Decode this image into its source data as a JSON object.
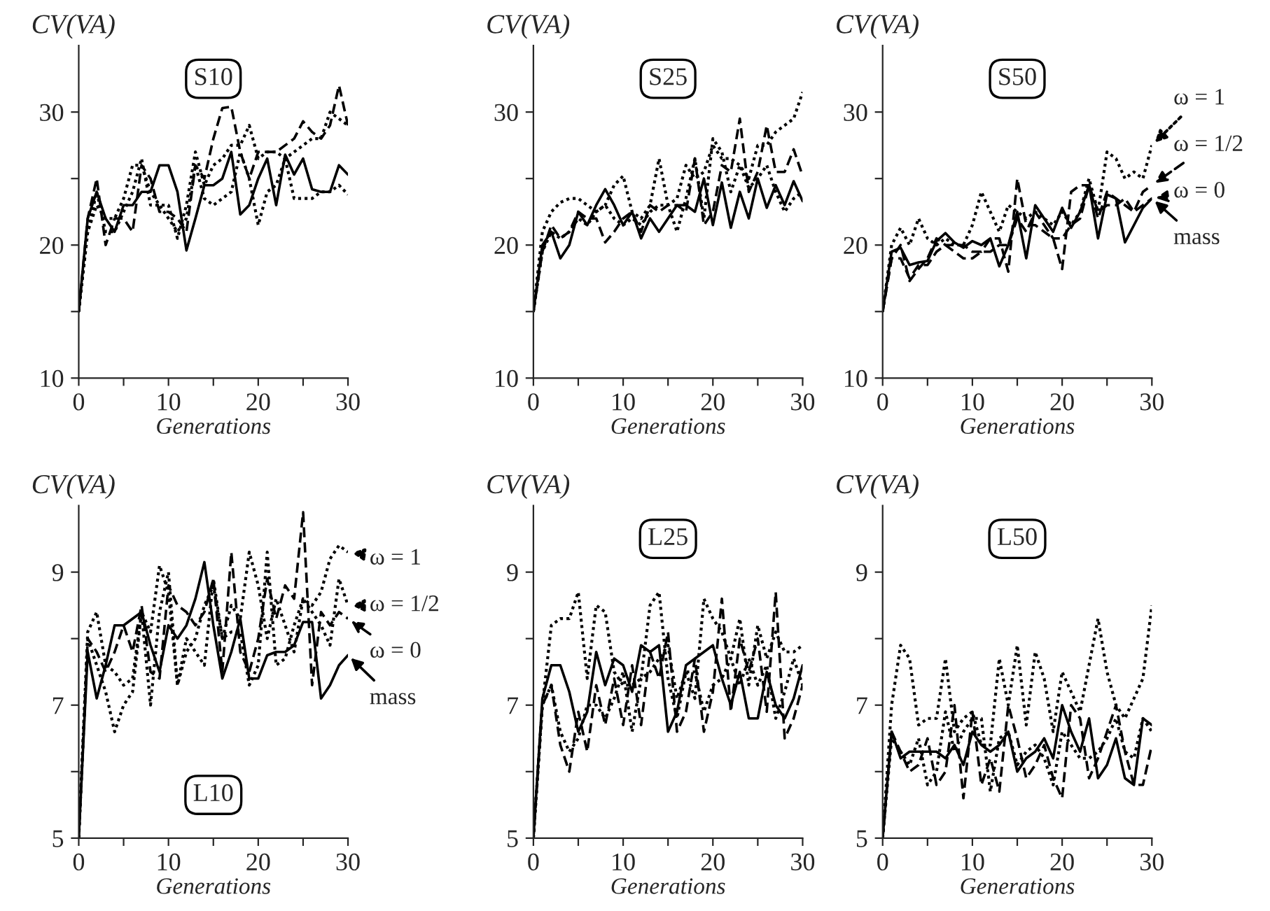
{
  "chart_data": [
    {
      "type": "line",
      "title": "S10",
      "xlabel": "Generations",
      "ylabel": "CV(VA)",
      "x": [
        0,
        1,
        2,
        3,
        4,
        5,
        6,
        7,
        8,
        9,
        10,
        11,
        12,
        13,
        14,
        15,
        16,
        17,
        18,
        19,
        20,
        21,
        22,
        23,
        24,
        25,
        26,
        27,
        28,
        29,
        30
      ],
      "xlim": [
        0,
        30
      ],
      "xticks": [
        0,
        {
          "value": 5,
          "label": null
        },
        10,
        {
          "value": 15,
          "label": null
        },
        20,
        {
          "value": 25,
          "label": null
        },
        30
      ],
      "ylim": [
        10,
        35
      ],
      "yticks": [
        10,
        {
          "value": 15,
          "label": null
        },
        20,
        {
          "value": 25,
          "label": null
        },
        30
      ],
      "legend": false,
      "series": [
        {
          "color": "#000000",
          "line_style": "solid",
          "values": [
            15,
            22,
            24,
            22,
            21,
            23,
            23,
            24,
            24,
            26,
            26,
            24,
            19.6,
            22,
            24.5,
            24.5,
            25,
            27,
            22.3,
            23,
            25,
            26.5,
            23,
            26.8,
            25.3,
            26.5,
            24.2,
            24,
            24,
            26,
            25.3
          ]
        },
        {
          "color": "#000000",
          "line_style": "dashed",
          "values": [
            15,
            22,
            25,
            20,
            22,
            22,
            21,
            26,
            25,
            22.5,
            22.5,
            22,
            21,
            26,
            25,
            28,
            30.3,
            30.4,
            27,
            25,
            27,
            27,
            27,
            27.5,
            28,
            29.3,
            28.5,
            28,
            29,
            32,
            29
          ]
        },
        {
          "color": "#000000",
          "line_style": "dotted",
          "values": [
            15,
            21,
            23,
            22,
            22,
            23.5,
            26,
            26,
            24,
            23,
            22,
            21,
            22,
            26,
            23.5,
            23,
            23.5,
            24,
            27,
            25,
            21.5,
            24,
            24.5,
            26.5,
            23.5,
            23.5,
            23.5,
            24,
            24,
            24.5,
            23.8
          ]
        },
        {
          "color": "#000000",
          "line_style": "dotted",
          "values": [
            15,
            21,
            24,
            21,
            21,
            22.5,
            24,
            26.5,
            23,
            23,
            23,
            20.5,
            23,
            27,
            24.5,
            26,
            26.5,
            27.5,
            27.5,
            29,
            26.5,
            27,
            27,
            26.5,
            27,
            27.5,
            28,
            28,
            30,
            29.5,
            29
          ]
        }
      ]
    },
    {
      "type": "line",
      "title": "S25",
      "xlabel": "Generations",
      "ylabel": "CV(VA)",
      "x": [
        0,
        1,
        2,
        3,
        4,
        5,
        6,
        7,
        8,
        9,
        10,
        11,
        12,
        13,
        14,
        15,
        16,
        17,
        18,
        19,
        20,
        21,
        22,
        23,
        24,
        25,
        26,
        27,
        28,
        29,
        30
      ],
      "xlim": [
        0,
        30
      ],
      "xticks": [
        0,
        {
          "value": 5,
          "label": null
        },
        10,
        {
          "value": 15,
          "label": null
        },
        20,
        {
          "value": 25,
          "label": null
        },
        30
      ],
      "ylim": [
        10,
        35
      ],
      "yticks": [
        10,
        {
          "value": 15,
          "label": null
        },
        20,
        {
          "value": 25,
          "label": null
        },
        30
      ],
      "legend": false,
      "series": [
        {
          "color": "#000000",
          "line_style": "solid",
          "values": [
            15,
            20,
            21,
            19,
            20,
            22.5,
            21.5,
            23,
            24.2,
            23,
            21.5,
            22.5,
            20.5,
            22,
            21,
            22,
            23,
            23,
            22.5,
            25,
            21.5,
            24.7,
            21.3,
            24,
            22,
            25,
            22.8,
            24.5,
            23,
            24.8,
            23.3
          ]
        },
        {
          "color": "#000000",
          "line_style": "dashed",
          "values": [
            15,
            19.5,
            21.5,
            20.5,
            21,
            22.5,
            22,
            22,
            20.2,
            21,
            22,
            22.5,
            21,
            23,
            22.5,
            23,
            23,
            22.5,
            26.5,
            21.5,
            22.5,
            26,
            25.5,
            29.5,
            24,
            25.5,
            29,
            25.5,
            25.5,
            27.2,
            25.2
          ]
        },
        {
          "color": "#000000",
          "line_style": "dotted",
          "values": [
            15,
            21,
            22.5,
            23.2,
            23.5,
            23.5,
            23,
            22.5,
            23,
            24.5,
            25.2,
            22.5,
            22,
            23,
            26.5,
            23,
            21,
            23.5,
            26.5,
            22,
            28,
            27,
            24,
            26,
            24.3,
            25,
            26,
            24,
            22.5,
            23.5,
            24
          ]
        },
        {
          "color": "#000000",
          "line_style": "dotted",
          "values": [
            15,
            19.5,
            21,
            20.5,
            21,
            22,
            21.5,
            22.5,
            23,
            22,
            21.5,
            22,
            21.5,
            22.5,
            23,
            23,
            23.5,
            26,
            25,
            25.5,
            27.5,
            26.5,
            26.5,
            26,
            25,
            27.5,
            27.5,
            28.5,
            29,
            29.5,
            31.5
          ]
        }
      ]
    },
    {
      "type": "line",
      "title": "S50",
      "xlabel": "Generations",
      "ylabel": "CV(VA)",
      "x": [
        0,
        1,
        2,
        3,
        4,
        5,
        6,
        7,
        8,
        9,
        10,
        11,
        12,
        13,
        14,
        15,
        16,
        17,
        18,
        19,
        20,
        21,
        22,
        23,
        24,
        25,
        26,
        27,
        28,
        29,
        30
      ],
      "xlim": [
        0,
        30
      ],
      "xticks": [
        0,
        {
          "value": 5,
          "label": null
        },
        10,
        {
          "value": 15,
          "label": null
        },
        20,
        {
          "value": 25,
          "label": null
        },
        30
      ],
      "ylim": [
        10,
        35
      ],
      "yticks": [
        10,
        {
          "value": 15,
          "label": null
        },
        20,
        {
          "value": 25,
          "label": null
        },
        30
      ],
      "legend": "right",
      "series": [
        {
          "name": "mass",
          "color": "#000000",
          "line_style": "solid",
          "values": [
            15,
            19.5,
            19.8,
            18.5,
            18.7,
            18.8,
            20.3,
            20.9,
            20.2,
            19.8,
            20.3,
            20,
            20.5,
            18.4,
            20,
            22.5,
            19,
            23,
            22,
            21,
            22.8,
            21.3,
            22.5,
            24.5,
            20.5,
            23.8,
            23.5,
            20.2,
            21.5,
            22.8,
            23.5
          ]
        },
        {
          "name": "ω = 0",
          "color": "#000000",
          "line_style": "dashed",
          "values": [
            15,
            19,
            19,
            17.5,
            18.5,
            18.5,
            19.5,
            20,
            19.5,
            19,
            19,
            19.5,
            19.5,
            20,
            20,
            22,
            21,
            22.5,
            21.5,
            20.5,
            20.5,
            21.5,
            22,
            24.5,
            22.5,
            23,
            23,
            23.5,
            22.5,
            23,
            23.5
          ]
        },
        {
          "name": "ω = 1/2",
          "color": "#000000",
          "line_style": "dashed",
          "values": [
            15,
            19,
            20,
            17.3,
            18.2,
            19,
            20.5,
            20,
            20,
            20,
            19.5,
            19.5,
            20.5,
            20.5,
            18,
            25,
            21.5,
            21.5,
            21,
            20.5,
            18.2,
            24,
            24.5,
            24.5,
            22,
            24,
            23.5,
            23,
            22.5,
            24,
            24.5
          ]
        },
        {
          "name": "ω = 1",
          "color": "#000000",
          "line_style": "dotted",
          "values": [
            15,
            20,
            21.3,
            20,
            22,
            20.5,
            20,
            20.5,
            20,
            20,
            21.5,
            24,
            22.5,
            21,
            23,
            22.5,
            22,
            22.5,
            22,
            21.5,
            22.5,
            21.5,
            22.5,
            25,
            22.5,
            27,
            26.5,
            25,
            25.5,
            25,
            27.5
          ]
        }
      ]
    },
    {
      "type": "line",
      "title": "L10",
      "xlabel": "Generations",
      "ylabel": "CV(VA)",
      "x": [
        0,
        1,
        2,
        3,
        4,
        5,
        6,
        7,
        8,
        9,
        10,
        11,
        12,
        13,
        14,
        15,
        16,
        17,
        18,
        19,
        20,
        21,
        22,
        23,
        24,
        25,
        26,
        27,
        28,
        29,
        30
      ],
      "xlim": [
        0,
        30
      ],
      "xticks": [
        0,
        {
          "value": 5,
          "label": null
        },
        10,
        {
          "value": 15,
          "label": null
        },
        20,
        {
          "value": 25,
          "label": null
        },
        30
      ],
      "ylim": [
        5,
        10
      ],
      "yticks": [
        5,
        {
          "value": 6,
          "label": null
        },
        7,
        {
          "value": 8,
          "label": null
        },
        9
      ],
      "legend": "right",
      "series": [
        {
          "name": "mass",
          "color": "#000000",
          "line_style": "solid",
          "values": [
            5,
            7.8,
            7.1,
            7.6,
            8.2,
            8.2,
            8.3,
            8.4,
            7.9,
            7.5,
            8.2,
            8,
            8.2,
            8.6,
            9.15,
            8.2,
            7.4,
            7.8,
            8.3,
            7.4,
            7.4,
            7.75,
            7.8,
            7.8,
            7.9,
            8.25,
            8.25,
            7.1,
            7.3,
            7.6,
            7.75
          ]
        },
        {
          "name": "ω = 0",
          "color": "#000000",
          "line_style": "dashed",
          "values": [
            5,
            8,
            7.8,
            7.5,
            7.8,
            8.2,
            7.8,
            8.5,
            7.5,
            7.4,
            8.8,
            8.5,
            8.4,
            8.2,
            8.4,
            8.9,
            7.5,
            9.3,
            7.8,
            7.5,
            8,
            8.9,
            8.3,
            8.8,
            8.6,
            9.9,
            7.3,
            8.4,
            8.2,
            8.4,
            8.3
          ]
        },
        {
          "name": "ω = 1/2",
          "color": "#000000",
          "line_style": "dotted",
          "values": [
            5,
            8.1,
            8.4,
            7.6,
            7.5,
            7.3,
            7.4,
            8.4,
            7,
            8.4,
            9,
            7.3,
            8,
            7.8,
            7.6,
            8.9,
            8,
            8.5,
            8.3,
            9.3,
            8.8,
            8,
            8.6,
            8.2,
            7.8,
            8.6,
            8.4,
            8.2,
            7.9,
            8.9,
            8.5
          ]
        },
        {
          "name": "ω = 1",
          "color": "#000000",
          "line_style": "dotted",
          "values": [
            5,
            8,
            7.6,
            7.2,
            6.6,
            7,
            7.2,
            8.4,
            8.1,
            9.1,
            8.7,
            7.3,
            7.8,
            8,
            8.5,
            8.8,
            8,
            8.1,
            8.1,
            7.3,
            7.6,
            9.3,
            7.6,
            7.7,
            8.2,
            8.6,
            8.5,
            8.7,
            9.2,
            9.4,
            9.3
          ]
        }
      ]
    },
    {
      "type": "line",
      "title": "L25",
      "xlabel": "Generations",
      "ylabel": "CV(VA)",
      "x": [
        0,
        1,
        2,
        3,
        4,
        5,
        6,
        7,
        8,
        9,
        10,
        11,
        12,
        13,
        14,
        15,
        16,
        17,
        18,
        19,
        20,
        21,
        22,
        23,
        24,
        25,
        26,
        27,
        28,
        29,
        30
      ],
      "xlim": [
        0,
        30
      ],
      "xticks": [
        0,
        {
          "value": 5,
          "label": null
        },
        10,
        {
          "value": 15,
          "label": null
        },
        20,
        {
          "value": 25,
          "label": null
        },
        30
      ],
      "ylim": [
        5,
        10
      ],
      "yticks": [
        5,
        {
          "value": 6,
          "label": null
        },
        7,
        {
          "value": 8,
          "label": null
        },
        9
      ],
      "legend": false,
      "series": [
        {
          "color": "#000000",
          "line_style": "solid",
          "values": [
            5,
            7.1,
            7.6,
            7.6,
            7.2,
            6.6,
            6.9,
            7.8,
            7.3,
            7.7,
            7.6,
            7.2,
            7.9,
            7.8,
            7.9,
            6.6,
            6.9,
            7.6,
            7.7,
            7.8,
            7.9,
            7.4,
            7,
            7.5,
            6.8,
            6.8,
            7.5,
            7,
            6.8,
            7.1,
            7.6
          ]
        },
        {
          "color": "#000000",
          "line_style": "dashed",
          "values": [
            5,
            7,
            7.3,
            6.4,
            6,
            6.9,
            6.3,
            7.3,
            6.7,
            7.4,
            6.7,
            7.6,
            6.7,
            7.8,
            7.4,
            8.1,
            6.6,
            6.9,
            7.7,
            6.6,
            7.2,
            8.6,
            6.9,
            8,
            7.5,
            8,
            6.9,
            8.7,
            6.5,
            6.8,
            7.3
          ]
        },
        {
          "color": "#000000",
          "line_style": "dotted",
          "values": [
            5,
            7,
            8.2,
            8.3,
            8.3,
            8.7,
            7.4,
            8.5,
            8.4,
            7.5,
            7.3,
            7.3,
            7.4,
            8.5,
            8.7,
            7.4,
            6.8,
            7.5,
            7.1,
            8.6,
            8.3,
            8.1,
            7.7,
            8.3,
            7.3,
            8.2,
            7.7,
            8.1,
            7.8,
            7.8,
            7.9
          ]
        },
        {
          "color": "#000000",
          "line_style": "dotted",
          "values": [
            5,
            7,
            7.3,
            6.6,
            6.3,
            6.5,
            7,
            7,
            6.8,
            7.1,
            7.5,
            6.6,
            7.4,
            7.5,
            7.7,
            7.9,
            7.1,
            7.5,
            7.5,
            6.9,
            7.3,
            7.4,
            7.7,
            7.3,
            7.7,
            7.3,
            7.6,
            6.8,
            7.2,
            7.7,
            7.3
          ]
        }
      ]
    },
    {
      "type": "line",
      "title": "L50",
      "xlabel": "Generations",
      "ylabel": "CV(VA)",
      "x": [
        0,
        1,
        2,
        3,
        4,
        5,
        6,
        7,
        8,
        9,
        10,
        11,
        12,
        13,
        14,
        15,
        16,
        17,
        18,
        19,
        20,
        21,
        22,
        23,
        24,
        25,
        26,
        27,
        28,
        29,
        30
      ],
      "xlim": [
        0,
        30
      ],
      "xticks": [
        0,
        {
          "value": 5,
          "label": null
        },
        10,
        {
          "value": 15,
          "label": null
        },
        20,
        {
          "value": 25,
          "label": null
        },
        30
      ],
      "ylim": [
        5,
        10
      ],
      "yticks": [
        5,
        {
          "value": 6,
          "label": null
        },
        7,
        {
          "value": 8,
          "label": null
        },
        9
      ],
      "legend": false,
      "series": [
        {
          "color": "#000000",
          "line_style": "solid",
          "values": [
            5,
            6.6,
            6.2,
            6.3,
            6.3,
            6.3,
            6.3,
            6.2,
            6.4,
            6.1,
            6.6,
            6.4,
            6.3,
            6.4,
            6.6,
            6,
            6.2,
            6.3,
            6.5,
            6.2,
            7,
            6.6,
            6.3,
            6.8,
            5.9,
            6.1,
            6.5,
            5.9,
            5.8,
            6.8,
            6.7
          ]
        },
        {
          "color": "#000000",
          "line_style": "dashed",
          "values": [
            5,
            6.6,
            6.3,
            6,
            6.1,
            6.5,
            5.8,
            6,
            7,
            5.6,
            6.9,
            5.8,
            6.2,
            5.7,
            7,
            6.5,
            5.9,
            6.1,
            6.4,
            5.9,
            5.6,
            7,
            6.8,
            5.9,
            6.2,
            6.6,
            7,
            6.3,
            5.8,
            5.8,
            6.4
          ]
        },
        {
          "color": "#000000",
          "line_style": "dotted",
          "values": [
            5,
            7,
            7.9,
            7.7,
            6.7,
            6.8,
            6.8,
            7.7,
            6.6,
            6.8,
            6.9,
            6.4,
            6.4,
            7.7,
            7,
            7.9,
            6.7,
            7.8,
            7.4,
            6.6,
            7.5,
            7.2,
            6.9,
            7.6,
            8.3,
            7.5,
            7,
            6.8,
            7.1,
            7.4,
            8.5
          ]
        },
        {
          "color": "#000000",
          "line_style": "dotted",
          "values": [
            5,
            6.5,
            6.3,
            6.1,
            6.5,
            5.8,
            6,
            6.9,
            6.3,
            6.6,
            6.8,
            6.8,
            5.7,
            6.5,
            6.6,
            6.1,
            6.3,
            6.4,
            6.2,
            5.8,
            6.6,
            6.4,
            6.2,
            6.2,
            6.3,
            6.5,
            6.8,
            6.3,
            6.2,
            6.8,
            6.6
          ]
        }
      ]
    }
  ]
}
